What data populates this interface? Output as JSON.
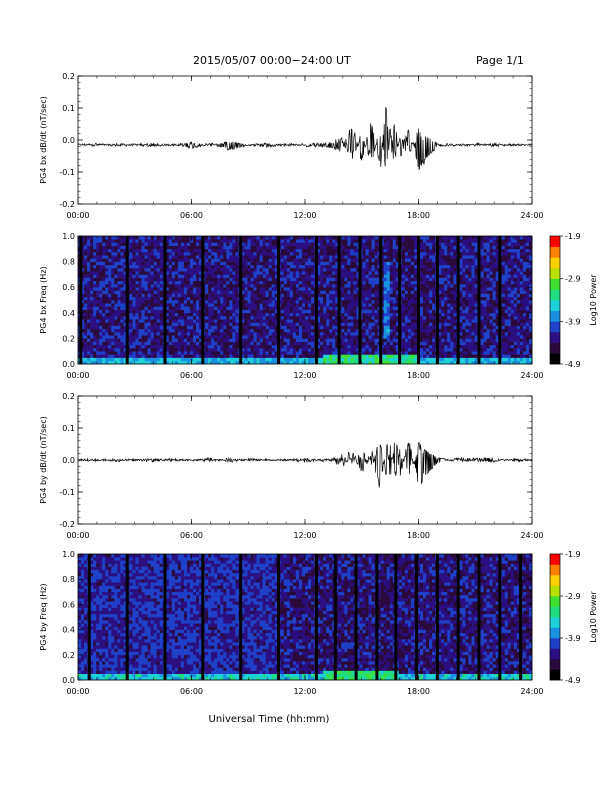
{
  "header": {
    "title": "2015/05/07  00:00−24:00 UT",
    "page": "Page 1/1"
  },
  "colors": {
    "colormap": [
      "#000000",
      "#2a0a3a",
      "#2b0f80",
      "#1f40c8",
      "#1a90e0",
      "#1ed0d8",
      "#22dd80",
      "#40e030",
      "#b8e000",
      "#ffd000",
      "#ff8000",
      "#ff0000"
    ],
    "trace": "#000000",
    "background": "#ffffff"
  },
  "chart_data": [
    {
      "type": "line",
      "ylabel": "PG4 bx dB/dt (nT/sec)",
      "xlabel": "",
      "ylim": [
        -0.2,
        0.2
      ],
      "yticks": [
        "-0.2",
        "-0.1",
        "0.0",
        "0.1",
        "0.2"
      ],
      "xlim": [
        0,
        24
      ],
      "xticks": [
        "00:00",
        "06:00",
        "12:00",
        "18:00",
        "24:00"
      ],
      "series": [
        {
          "x": [
            0,
            1,
            2,
            3,
            4,
            5,
            6,
            7,
            8,
            9,
            10,
            11,
            12,
            13,
            14,
            14.5,
            15,
            15.5,
            16,
            16.3,
            16.5,
            16.7,
            17,
            17.5,
            18,
            19,
            20,
            21,
            22,
            23,
            24
          ],
          "y": [
            -0.015,
            -0.012,
            -0.018,
            -0.015,
            -0.02,
            -0.012,
            -0.025,
            -0.01,
            -0.03,
            -0.015,
            -0.02,
            -0.012,
            -0.018,
            -0.02,
            -0.03,
            0.04,
            -0.06,
            0.05,
            -0.07,
            0.11,
            -0.1,
            0.06,
            -0.05,
            0.03,
            -0.08,
            -0.02,
            -0.015,
            -0.012,
            -0.018,
            -0.015,
            -0.015
          ]
        }
      ]
    },
    {
      "type": "heatmap",
      "ylabel": "PG4 bx Freq (Hz)",
      "xlabel": "",
      "ylim": [
        0.0,
        1.0
      ],
      "yticks": [
        "0.0",
        "0.2",
        "0.4",
        "0.6",
        "0.8",
        "1.0"
      ],
      "xlim": [
        0,
        24
      ],
      "xticks": [
        "00:00",
        "06:00",
        "12:00",
        "18:00",
        "24:00"
      ],
      "colorbar": {
        "label": "Log10 Power",
        "ticks": [
          "-1.9",
          "-2.9",
          "-3.9",
          "-4.9"
        ],
        "range": [
          -4.9,
          -1.9
        ]
      },
      "data_gaps_hours": [
        0.15,
        2.6,
        4.6,
        6.6,
        8.6,
        10.6,
        12.6,
        13.8,
        14.9,
        16.0,
        17.0,
        18.0,
        19.0,
        20.1,
        21.2,
        22.3
      ],
      "bands": [
        {
          "x_start": 0,
          "x_end": 24,
          "f_low": 0.0,
          "f_high": 0.06,
          "level": -3.4
        },
        {
          "x_start": 13,
          "x_end": 18,
          "f_low": 0.0,
          "f_high": 0.08,
          "level": -3.0
        },
        {
          "x_start": 16.1,
          "x_end": 16.4,
          "f_low": 0.2,
          "f_high": 0.8,
          "level": -3.6
        }
      ]
    },
    {
      "type": "line",
      "ylabel": "PG4 by dB/dt (nT/sec)",
      "xlabel": "",
      "ylim": [
        -0.2,
        0.2
      ],
      "yticks": [
        "-0.2",
        "-0.1",
        "0.0",
        "0.1",
        "0.2"
      ],
      "xlim": [
        0,
        24
      ],
      "xticks": [
        "00:00",
        "06:00",
        "12:00",
        "18:00",
        "24:00"
      ],
      "series": [
        {
          "x": [
            0,
            1,
            2,
            3,
            4,
            5,
            6,
            7,
            8,
            9,
            10,
            11,
            12,
            13,
            14,
            14.5,
            15,
            15.5,
            16,
            16.3,
            16.5,
            16.8,
            17,
            17.5,
            18,
            19,
            20,
            21,
            22,
            23,
            24
          ],
          "y": [
            0.0,
            0.002,
            -0.003,
            0.001,
            -0.004,
            0.003,
            -0.002,
            0.004,
            -0.005,
            0.003,
            -0.002,
            0.001,
            -0.004,
            0.002,
            -0.006,
            0.02,
            -0.03,
            0.025,
            -0.09,
            0.07,
            -0.06,
            0.08,
            -0.05,
            0.06,
            -0.07,
            -0.01,
            0.005,
            0.004,
            0.006,
            -0.003,
            0.0
          ]
        }
      ]
    },
    {
      "type": "heatmap",
      "ylabel": "PG4 by Freq (Hz)",
      "xlabel": "Universal Time (hh:mm)",
      "ylim": [
        0.0,
        1.0
      ],
      "yticks": [
        "0.0",
        "0.2",
        "0.4",
        "0.6",
        "0.8",
        "1.0"
      ],
      "xlim": [
        0,
        24
      ],
      "xticks": [
        "00:00",
        "06:00",
        "12:00",
        "18:00",
        "24:00"
      ],
      "colorbar": {
        "label": "Log10 Power",
        "ticks": [
          "-1.9",
          "-2.9",
          "-3.9",
          "-4.9"
        ],
        "range": [
          -4.9,
          -1.9
        ]
      },
      "data_gaps_hours": [
        0.6,
        2.6,
        4.6,
        6.6,
        8.6,
        10.6,
        12.6,
        13.6,
        14.7,
        15.8,
        16.8,
        17.9,
        19.0,
        20.1,
        21.2,
        22.3,
        23.4
      ],
      "bands": [
        {
          "x_start": 0,
          "x_end": 10.5,
          "f_low": 0.0,
          "f_high": 1.0,
          "level": -4.0
        },
        {
          "x_start": 0,
          "x_end": 24,
          "f_low": 0.0,
          "f_high": 0.06,
          "level": -3.3
        },
        {
          "x_start": 13,
          "x_end": 17,
          "f_low": 0.0,
          "f_high": 0.08,
          "level": -3.0
        }
      ]
    }
  ]
}
